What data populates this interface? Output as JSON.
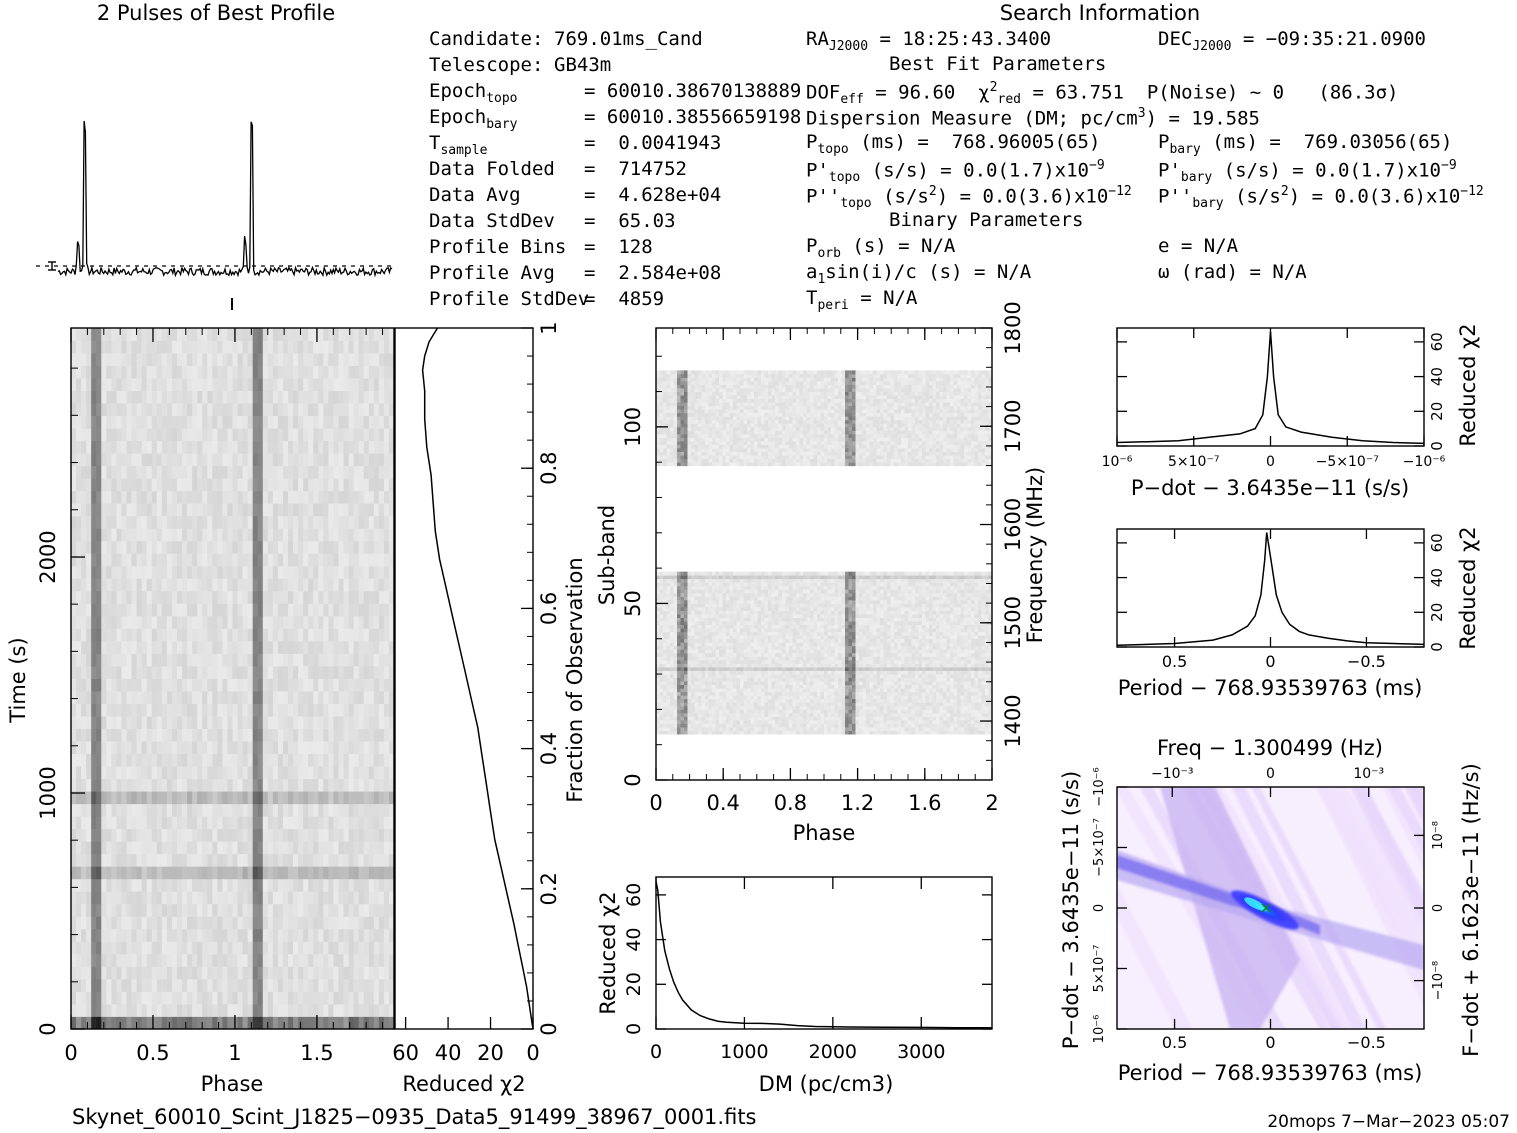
{
  "profile_title": "2 Pulses of Best Profile",
  "search_title": "Search Information",
  "candidate": {
    "col1": [
      {
        "label": "Candidate:",
        "value": "769.01ms_Cand"
      },
      {
        "label": "Telescope:",
        "value": "GB43m"
      },
      {
        "label": "Epoch",
        "sub": "topo",
        "value": "= 60010.38670138889"
      },
      {
        "label": "Epoch",
        "sub": "bary",
        "value": "= 60010.38556659198"
      },
      {
        "label": "T",
        "sub": "sample",
        "value": "=  0.0041943"
      },
      {
        "label": "Data Folded",
        "value": "=  714752"
      },
      {
        "label": "Data Avg",
        "value": "=  4.628e+04"
      },
      {
        "label": "Data StdDev",
        "value": "=  65.03"
      },
      {
        "label": "Profile Bins",
        "value": "=  128"
      },
      {
        "label": "Profile Avg",
        "value": "=  2.584e+08"
      },
      {
        "label": "Profile StdDev",
        "value": "=  4859"
      }
    ],
    "ra": "= 18:25:43.3400",
    "dec": "= −09:35:21.0900",
    "best_fit_title": "Best Fit Parameters",
    "dof": "= 96.60",
    "chi2": "= 63.751",
    "pnoise": "P(Noise) ~ 0   (86.3σ)",
    "dm_line": "Dispersion Measure (DM; pc/cm",
    "dm_value": ") = 19.585",
    "ptopo": "(ms) =  768.96005(65)",
    "pbary": "(ms) =  769.03056(65)",
    "pdtopo": "(s/s) = 0.0(1.7)x10",
    "pdtopo_exp": "−9",
    "pdbary": "(s/s) = 0.0(1.7)x10",
    "pdbary_exp": "−9",
    "pddtopo": "(s/s",
    "pddtopo_tail": ") = 0.0(3.6)x10",
    "pddtopo_exp": "−12",
    "pddbary": "(s/s",
    "pddbary_tail": ") = 0.0(3.6)x10",
    "pddbary_exp": "−12",
    "binary_title": "Binary Parameters",
    "porb": "(s) = N/A",
    "a1": "a",
    "a1_tail": "sin(i)/c (s) = N/A",
    "tperi": "= N/A",
    "e": "e = N/A",
    "omega": "ω (rad) = N/A"
  },
  "footer": {
    "filename": "Skynet_60010_Scint_J1825−0935_Data5_91499_38967_0001.fits",
    "stamp": "20mops  7−Mar−2023 05:07"
  },
  "colors": {
    "ink": "#000000",
    "map_low": "#ffffff",
    "map_mid": "#c8b4f0",
    "map_high": "#1a1aff",
    "map_peak": "#3cf0ff"
  },
  "chart_data": [
    {
      "type": "line",
      "name": "profile",
      "title": "2 Pulses of Best Profile",
      "x_range": [
        0,
        2
      ],
      "peaks": [
        {
          "x": 0.16,
          "height": 1.0
        },
        {
          "x": 1.16,
          "height": 1.0
        }
      ],
      "secondary_peaks": [
        {
          "x": 0.12,
          "height": 0.16
        },
        {
          "x": 1.12,
          "height": 0.16
        }
      ],
      "baseline_level": 0.0,
      "error_bar": true
    },
    {
      "type": "heatmap",
      "name": "time-phase",
      "xlabel": "Phase",
      "ylabel": "Time (s)",
      "xlim": [
        0,
        2
      ],
      "ylim": [
        0,
        2950
      ],
      "xticks": [
        "0",
        "0.5",
        "1",
        "1.5"
      ],
      "yticks": [
        "0",
        "1000",
        "2000"
      ],
      "dark_columns": [
        0.16,
        1.16
      ],
      "dark_rows": [
        640,
        960
      ]
    },
    {
      "type": "line",
      "name": "chi2-vs-time",
      "xlabel": "Reduced χ2",
      "ylabel": "Fraction of Observation",
      "xlim": [
        65,
        0
      ],
      "ylim": [
        0,
        1
      ],
      "xticks": [
        "60",
        "40",
        "20",
        "0"
      ],
      "yticks": [
        "0",
        "0.2",
        "0.4",
        "0.6",
        "0.8",
        "1"
      ],
      "points": [
        [
          0,
          0
        ],
        [
          0.5,
          0.01
        ],
        [
          1.5,
          0.03
        ],
        [
          3,
          0.06
        ],
        [
          5,
          0.09
        ],
        [
          7,
          0.12
        ],
        [
          9,
          0.15
        ],
        [
          12,
          0.19
        ],
        [
          15,
          0.23
        ],
        [
          18,
          0.27
        ],
        [
          20,
          0.31
        ],
        [
          22,
          0.35
        ],
        [
          24,
          0.39
        ],
        [
          26,
          0.43
        ],
        [
          29,
          0.47
        ],
        [
          32,
          0.51
        ],
        [
          35,
          0.55
        ],
        [
          38,
          0.59
        ],
        [
          41,
          0.63
        ],
        [
          44,
          0.67
        ],
        [
          46,
          0.71
        ],
        [
          47,
          0.75
        ],
        [
          48,
          0.79
        ],
        [
          50,
          0.83
        ],
        [
          51,
          0.87
        ],
        [
          51,
          0.91
        ],
        [
          52,
          0.94
        ],
        [
          51,
          0.96
        ],
        [
          49,
          0.98
        ],
        [
          47,
          0.99
        ],
        [
          45,
          1.0
        ]
      ]
    },
    {
      "type": "heatmap",
      "name": "subband-phase",
      "xlabel": "Phase",
      "ylabel": "Sub-band",
      "y2label": "Frequency (MHz)",
      "xlim": [
        0,
        2
      ],
      "ylim": [
        0,
        128
      ],
      "y2lim": [
        1340,
        1800
      ],
      "xticks": [
        "0",
        "0.4",
        "0.8",
        "1.2",
        "1.6",
        "2"
      ],
      "yticks": [
        "0",
        "50",
        "100"
      ],
      "y2ticks": [
        "1400",
        "1500",
        "1600",
        "1700",
        "1800"
      ],
      "filled_bands": [
        [
          13,
          59
        ],
        [
          89,
          116
        ]
      ],
      "dark_columns": [
        0.16,
        1.16
      ]
    },
    {
      "type": "line",
      "name": "chi2-vs-dm",
      "xlabel": "DM (pc/cm3)",
      "ylabel": "Reduced χ2",
      "xlim": [
        0,
        3800
      ],
      "ylim": [
        0,
        68
      ],
      "xticks": [
        "0",
        "1000",
        "2000",
        "3000"
      ],
      "yticks": [
        "0",
        "20",
        "40",
        "60"
      ],
      "points": [
        [
          0,
          66
        ],
        [
          20,
          62
        ],
        [
          50,
          48
        ],
        [
          100,
          35
        ],
        [
          150,
          27
        ],
        [
          200,
          21
        ],
        [
          250,
          16.5
        ],
        [
          300,
          13
        ],
        [
          400,
          8.5
        ],
        [
          500,
          6
        ],
        [
          600,
          4.5
        ],
        [
          700,
          3.5
        ],
        [
          800,
          3
        ],
        [
          1000,
          2.6
        ],
        [
          1200,
          2.5
        ],
        [
          1400,
          2.2
        ],
        [
          1600,
          1.5
        ],
        [
          1800,
          1.1
        ],
        [
          2200,
          0.9
        ],
        [
          2600,
          0.8
        ],
        [
          3000,
          0.7
        ],
        [
          3400,
          0.6
        ],
        [
          3800,
          0.6
        ]
      ]
    },
    {
      "type": "line",
      "name": "chi2-vs-pdot",
      "xlabel": "P−dot − 3.6435e−11 (s/s)",
      "ylabel": "Reduced χ2",
      "xlim": [
        1e-06,
        -1e-06
      ],
      "ylim": [
        0,
        68
      ],
      "xticks": [
        "10⁻⁶",
        "5×10⁻⁷",
        "0",
        "−5×10⁻⁷",
        "−10⁻⁶"
      ],
      "yticks": [
        "0",
        "20",
        "40",
        "60"
      ],
      "points": [
        [
          1e-06,
          2
        ],
        [
          8e-07,
          2.5
        ],
        [
          6e-07,
          3
        ],
        [
          4e-07,
          5
        ],
        [
          2e-07,
          7
        ],
        [
          1e-07,
          10
        ],
        [
          5e-08,
          18
        ],
        [
          2e-08,
          40
        ],
        [
          0,
          66
        ],
        [
          -2e-08,
          40
        ],
        [
          -5e-08,
          18
        ],
        [
          -1e-07,
          11
        ],
        [
          -2e-07,
          8
        ],
        [
          -4e-07,
          5
        ],
        [
          -6e-07,
          3
        ],
        [
          -8e-07,
          2
        ],
        [
          -1e-06,
          1.5
        ]
      ]
    },
    {
      "type": "line",
      "name": "chi2-vs-period",
      "xlabel": "Period − 768.93539763 (ms)",
      "ylabel": "Reduced χ2",
      "xlim": [
        0.8,
        -0.8
      ],
      "ylim": [
        0,
        68
      ],
      "xticks": [
        "0.5",
        "0",
        "−0.5"
      ],
      "yticks": [
        "0",
        "20",
        "40",
        "60"
      ],
      "points": [
        [
          0.8,
          1
        ],
        [
          0.5,
          2
        ],
        [
          0.3,
          4
        ],
        [
          0.2,
          7
        ],
        [
          0.12,
          12
        ],
        [
          0.08,
          18
        ],
        [
          0.05,
          30
        ],
        [
          0.03,
          50
        ],
        [
          0.02,
          66
        ],
        [
          0.0,
          52
        ],
        [
          -0.03,
          30
        ],
        [
          -0.06,
          20
        ],
        [
          -0.1,
          13
        ],
        [
          -0.15,
          9
        ],
        [
          -0.2,
          7
        ],
        [
          -0.3,
          5
        ],
        [
          -0.4,
          3.5
        ],
        [
          -0.5,
          2.5
        ],
        [
          -0.8,
          1.5
        ]
      ]
    },
    {
      "type": "heatmap",
      "name": "pdot-period",
      "xlabel": "Period − 768.93539763 (ms)",
      "ylabel": "P−dot − 3.6435e−11 (s/s)",
      "x2label": "Freq − 1.300499 (Hz)",
      "y2label": "F−dot + 6.1623e−11 (Hz/s)",
      "xlim": [
        0.8,
        -0.8
      ],
      "ylim": [
        1e-06,
        -1e-06
      ],
      "xticks": [
        "0.5",
        "0",
        "−0.5"
      ],
      "x2ticks": [
        "−10⁻³",
        "0",
        "10⁻³"
      ],
      "yticks": [
        "10⁻⁶",
        "5×10⁻⁷",
        "0",
        "−5×10⁻⁷",
        "−10⁻⁶"
      ],
      "y2ticks": [
        "−10⁻⁸",
        "0",
        "10⁻⁸"
      ],
      "peak": [
        0.0,
        0.0
      ]
    }
  ]
}
